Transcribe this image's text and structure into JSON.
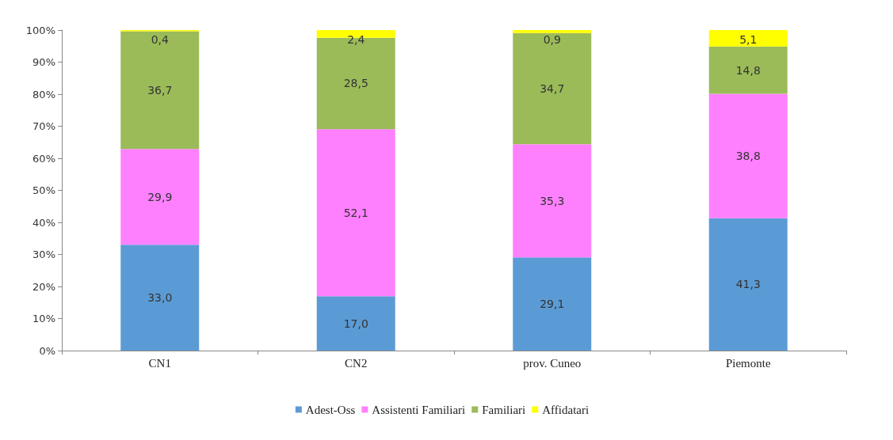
{
  "chart_data": {
    "type": "bar",
    "stacked": true,
    "categories": [
      "CN1",
      "CN2",
      "prov. Cuneo",
      "Piemonte"
    ],
    "series": [
      {
        "name": "Adest-Oss",
        "color": "#5b9bd5",
        "values": [
          33.0,
          17.0,
          29.1,
          41.3
        ],
        "value_labels": [
          "33,0",
          "17,0",
          "29,1",
          "41,3"
        ]
      },
      {
        "name": "Assistenti Familiari",
        "color": "#ff80ff",
        "values": [
          29.9,
          52.1,
          35.3,
          38.8
        ],
        "value_labels": [
          "29,9",
          "52,1",
          "35,3",
          "38,8"
        ]
      },
      {
        "name": "Familiari",
        "color": "#9bbb59",
        "values": [
          36.7,
          28.5,
          34.7,
          14.8
        ],
        "value_labels": [
          "36,7",
          "28,5",
          "34,7",
          "14,8"
        ]
      },
      {
        "name": "Affidatari",
        "color": "#ffff00",
        "values": [
          0.4,
          2.4,
          0.9,
          5.1
        ],
        "value_labels": [
          "0,4",
          "2,4",
          "0,9",
          "5,1"
        ]
      }
    ],
    "ylim": [
      0,
      100
    ],
    "yticks": [
      {
        "value": 0,
        "label": "0%"
      },
      {
        "value": 10,
        "label": "10%"
      },
      {
        "value": 20,
        "label": "20%"
      },
      {
        "value": 30,
        "label": "30%"
      },
      {
        "value": 40,
        "label": "40%"
      },
      {
        "value": 50,
        "label": "50%"
      },
      {
        "value": 60,
        "label": "60%"
      },
      {
        "value": 70,
        "label": "70%"
      },
      {
        "value": 80,
        "label": "80%"
      },
      {
        "value": 90,
        "label": "90%"
      },
      {
        "value": 100,
        "label": "100%"
      }
    ],
    "grid": false,
    "legend": "bottom"
  }
}
